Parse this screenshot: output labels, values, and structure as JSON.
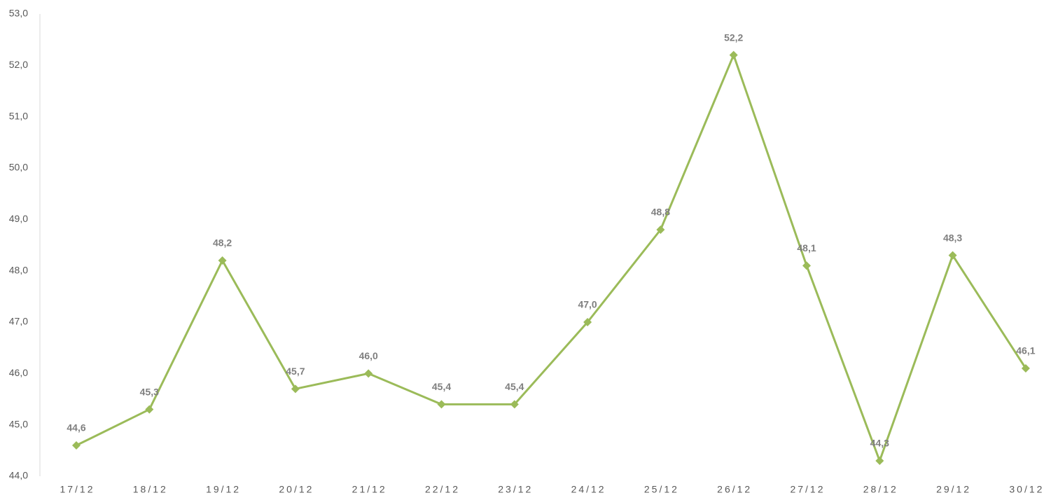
{
  "chart_data": {
    "type": "line",
    "categories": [
      "17/12",
      "18/12",
      "19/12",
      "20/12",
      "21/12",
      "22/12",
      "23/12",
      "24/12",
      "25/12",
      "26/12",
      "27/12",
      "28/12",
      "29/12",
      "30/12"
    ],
    "values": [
      44.6,
      45.3,
      48.2,
      45.7,
      46.0,
      45.4,
      45.4,
      47.0,
      48.8,
      52.2,
      48.1,
      44.3,
      48.3,
      46.1
    ],
    "value_labels": [
      "44,6",
      "45,3",
      "48,2",
      "45,7",
      "46,0",
      "45,4",
      "45,4",
      "47,0",
      "48,8",
      "52,2",
      "48,1",
      "44,3",
      "48,3",
      "46,1"
    ],
    "color": "#9bbb59",
    "ylim": [
      44,
      53
    ],
    "yticks": [
      {
        "value": 44,
        "label": "44,0"
      },
      {
        "value": 45,
        "label": "45,0"
      },
      {
        "value": 46,
        "label": "46,0"
      },
      {
        "value": 47,
        "label": "47,0"
      },
      {
        "value": 48,
        "label": "48,0"
      },
      {
        "value": 49,
        "label": "49,0"
      },
      {
        "value": 50,
        "label": "50,0"
      },
      {
        "value": 51,
        "label": "51,0"
      },
      {
        "value": 52,
        "label": "52,0"
      },
      {
        "value": 53,
        "label": "53,0"
      }
    ],
    "grid": false
  }
}
